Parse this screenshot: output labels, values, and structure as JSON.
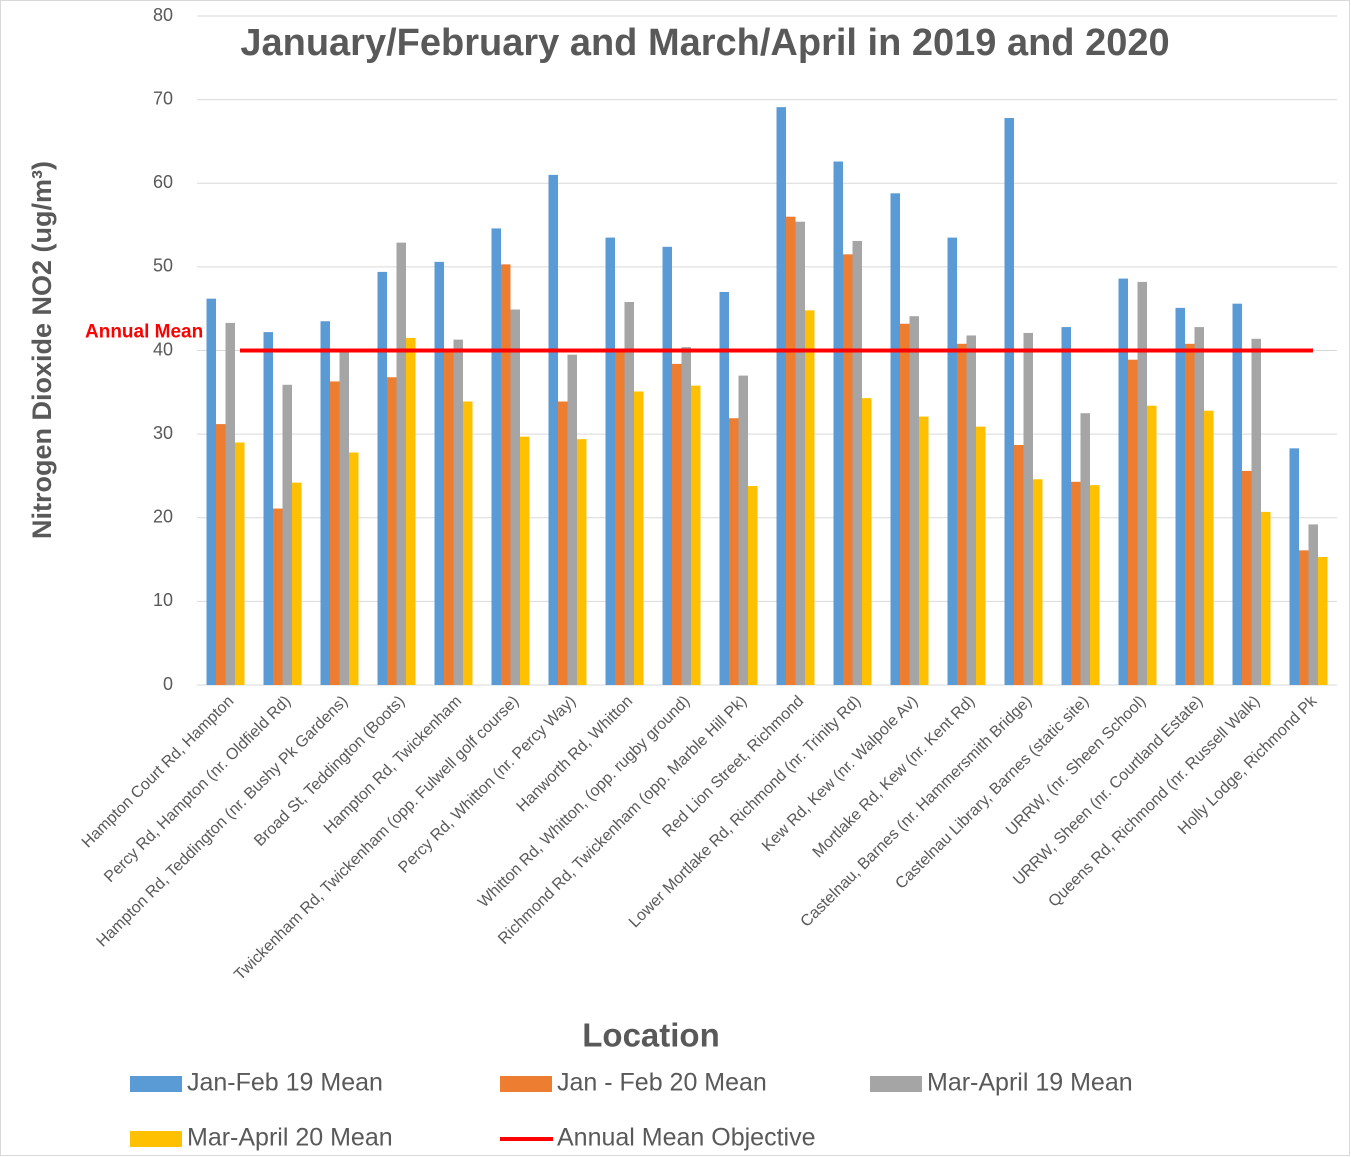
{
  "chart_data": {
    "type": "bar",
    "title": "January/February and March/April in 2019 and 2020",
    "x_label": "Location",
    "y_label": "Nitrogen Dioxide NO2  (ug/m³)",
    "categories": [
      "Hampton Court Rd, Hampton",
      "Percy Rd, Hampton (nr. Oldfield Rd)",
      "Hampton Rd, Teddington (nr. Bushy Pk Gardens)",
      "Broad St, Teddington (Boots)",
      "Hampton Rd, Twickenham",
      "Twickenham Rd, Twickenham (opp. Fulwell golf course)",
      "Percy Rd, Whitton (nr. Percy Way)",
      "Hanworth Rd, Whitton",
      "Whitton Rd, Whitton, (opp. rugby ground)",
      "Richmond Rd, Twickenham (opp. Marble Hill Pk)",
      "Red Lion Street, Richmond",
      "Lower Mortlake Rd, Richmond (nr. Trinity Rd)",
      "Kew Rd, Kew (nr. Walpole Av)",
      "Mortlake Rd, Kew (nr. Kent Rd)",
      "Castelnau, Barnes (nr. Hammersmith Bridge)",
      "Castelnau Library, Barnes (static site)",
      "URRW, (nr. Sheen School)",
      "URRW, Sheen (nr. Courtland Estate)",
      "Queens Rd, Richmond (nr. Russell Walk)",
      "Holly Lodge, Richmond Pk"
    ],
    "series": [
      {
        "name": "Jan-Feb 19 Mean",
        "color": "#5b9bd5",
        "values": [
          46.2,
          42.2,
          43.5,
          49.4,
          50.6,
          54.6,
          61.0,
          53.5,
          52.4,
          47.0,
          69.1,
          62.6,
          58.8,
          53.5,
          67.8,
          42.8,
          48.6,
          45.1,
          45.6,
          28.3
        ]
      },
      {
        "name": "Jan - Feb 20 Mean",
        "color": "#ed7d31",
        "values": [
          31.2,
          21.1,
          36.3,
          36.8,
          40.2,
          50.3,
          33.9,
          40.2,
          38.4,
          31.9,
          56.0,
          51.5,
          43.2,
          40.8,
          28.7,
          24.3,
          38.9,
          40.8,
          25.6,
          16.1
        ]
      },
      {
        "name": "Mar-April 19 Mean",
        "color": "#a5a5a5",
        "values": [
          43.3,
          35.9,
          40.0,
          52.9,
          41.3,
          44.9,
          39.5,
          45.8,
          40.4,
          37.0,
          55.4,
          53.1,
          44.1,
          41.8,
          42.1,
          32.5,
          48.2,
          42.8,
          41.4,
          19.2
        ]
      },
      {
        "name": "Mar-April 20 Mean",
        "color": "#ffc000",
        "values": [
          29.0,
          24.2,
          27.8,
          41.5,
          33.9,
          29.7,
          29.4,
          35.1,
          35.8,
          23.8,
          44.8,
          34.3,
          32.1,
          30.9,
          24.6,
          23.9,
          33.4,
          32.8,
          20.7,
          15.3
        ]
      }
    ],
    "reference_line": {
      "name": "Annual Mean Objective",
      "label": "Annual Mean",
      "value": 40,
      "color": "#ff0000"
    },
    "ylim": [
      0,
      80
    ],
    "yticks": [
      0,
      10,
      20,
      30,
      40,
      50,
      60,
      70,
      80
    ],
    "grid": true
  }
}
